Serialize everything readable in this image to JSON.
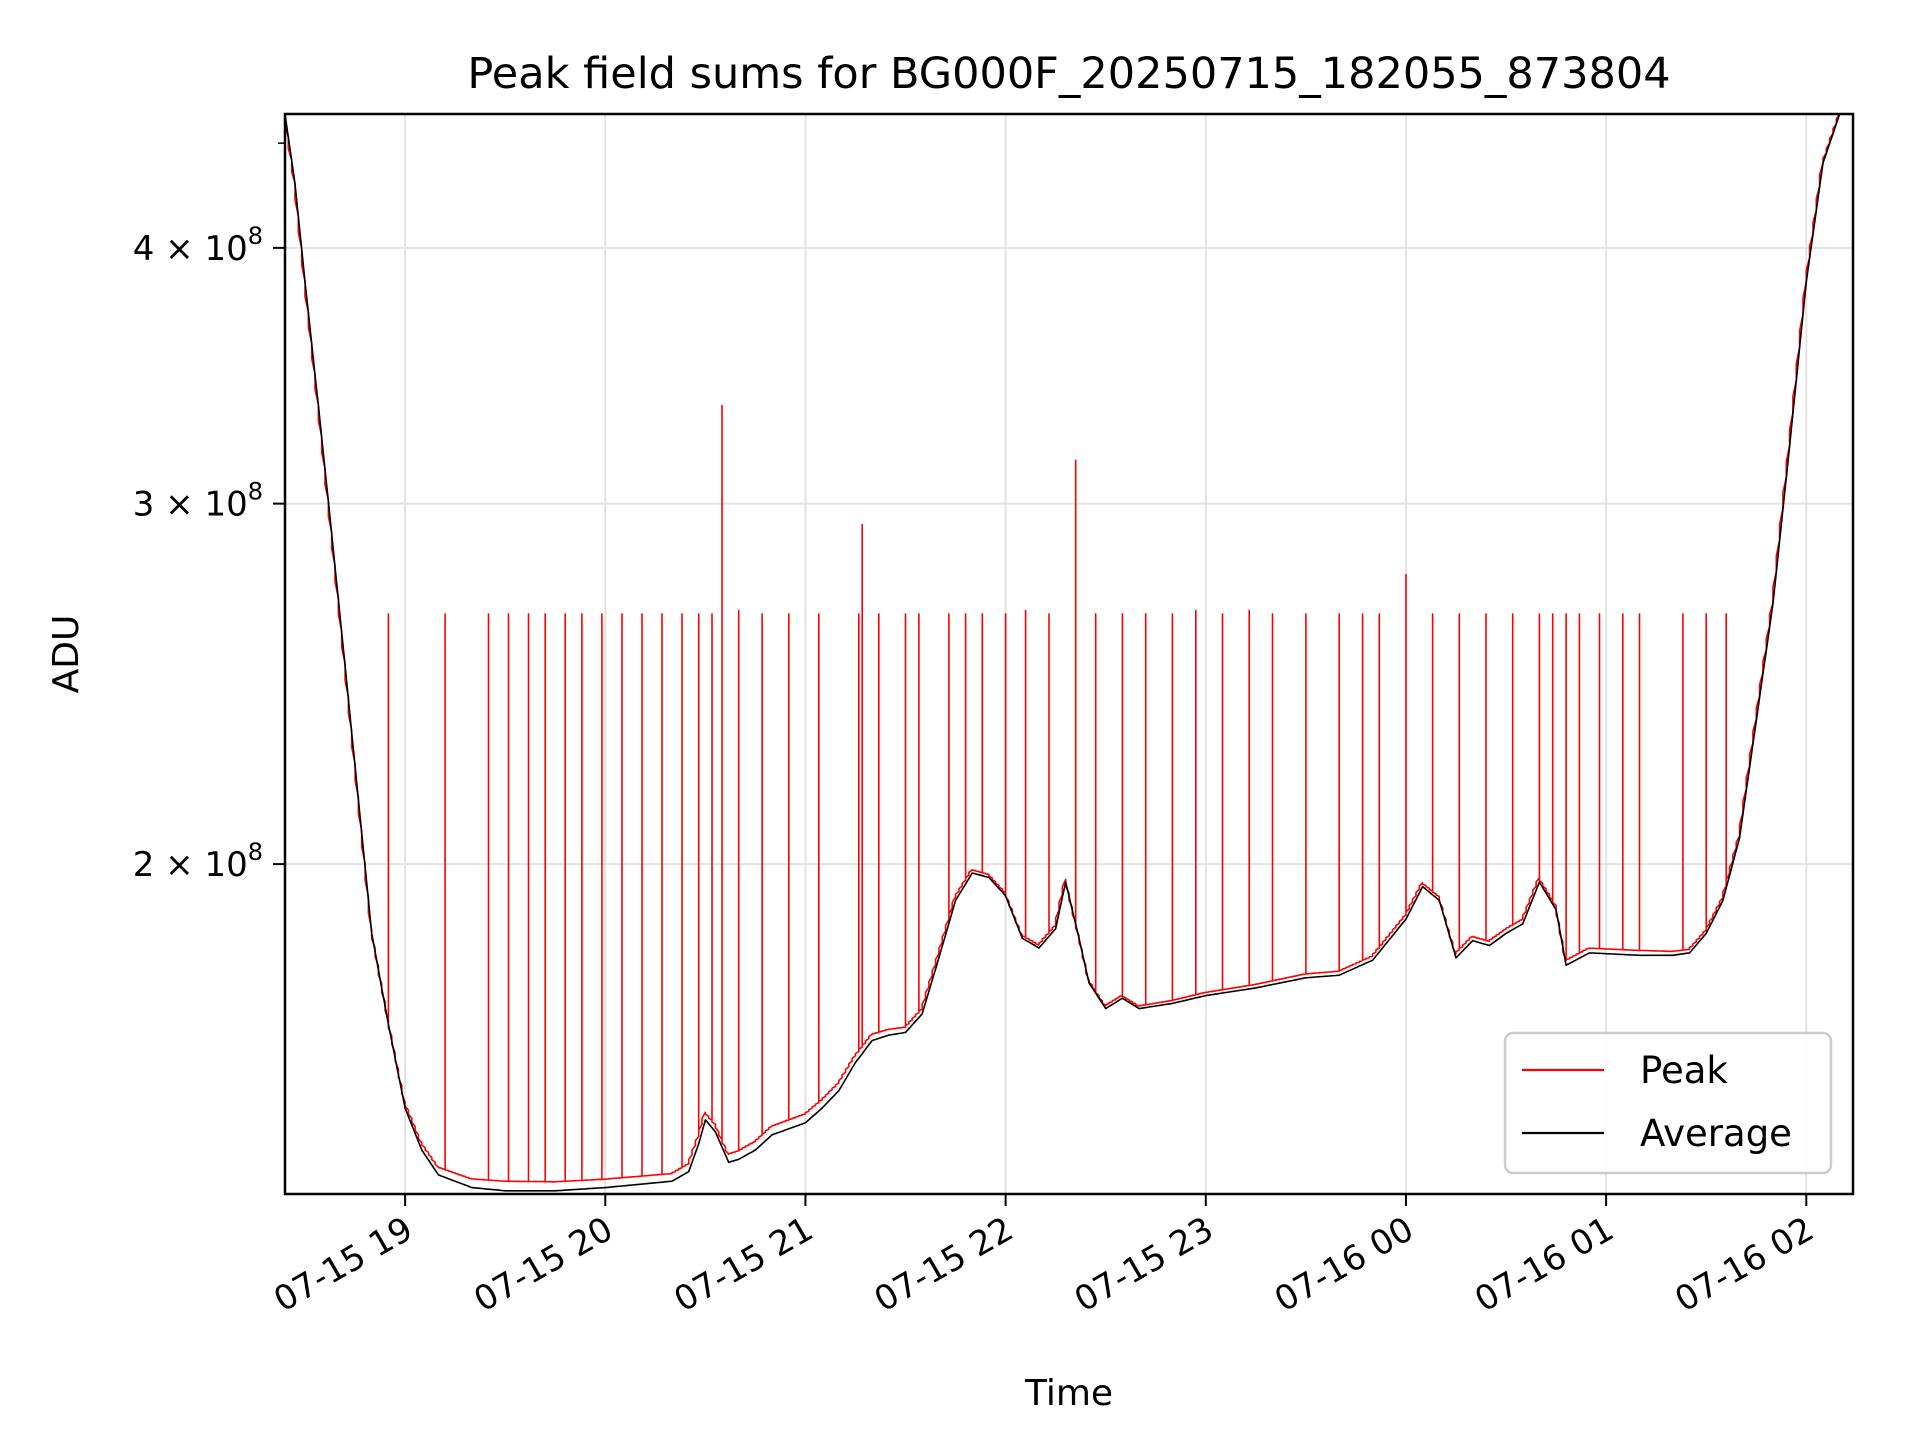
{
  "chart_data": {
    "type": "line",
    "title": "Peak field sums for BG000F_20250715_182055_873804",
    "xlabel": "Time",
    "ylabel": "ADU",
    "x_axis": {
      "type": "datetime",
      "range": [
        "2025-07-15 18:24",
        "2025-07-16 02:14"
      ],
      "ticks": [
        {
          "value": "2025-07-15 19:00",
          "label": "07-15 19"
        },
        {
          "value": "2025-07-15 20:00",
          "label": "07-15 20"
        },
        {
          "value": "2025-07-15 21:00",
          "label": "07-15 21"
        },
        {
          "value": "2025-07-15 22:00",
          "label": "07-15 22"
        },
        {
          "value": "2025-07-15 23:00",
          "label": "07-15 23"
        },
        {
          "value": "2025-07-16 00:00",
          "label": "07-16 00"
        },
        {
          "value": "2025-07-16 01:00",
          "label": "07-16 01"
        },
        {
          "value": "2025-07-16 02:00",
          "label": "07-16 02"
        }
      ]
    },
    "y_axis": {
      "scale": "log",
      "range": [
        138000000,
        465000000
      ],
      "ticks": [
        {
          "value": 200000000,
          "mantissa": "2",
          "base": "10",
          "exponent": "8"
        },
        {
          "value": 300000000,
          "mantissa": "3",
          "base": "10",
          "exponent": "8"
        },
        {
          "value": 400000000,
          "mantissa": "4",
          "base": "10",
          "exponent": "8"
        }
      ],
      "minor_ticks": [
        450000000
      ]
    },
    "grid": true,
    "legend": {
      "position": "lower-right"
    },
    "series": [
      {
        "name": "Peak",
        "color": "#ff0000",
        "baseline_offset": [
          [
            "2025-07-15 18:24",
            0
          ],
          [
            "2025-07-15 19:05",
            1200000
          ],
          [
            "2025-07-15 19:30",
            1500000
          ],
          [
            "2025-07-15 20:20",
            1200000
          ],
          [
            "2025-07-15 21:00",
            1500000
          ],
          [
            "2025-07-15 21:40",
            800000
          ],
          [
            "2025-07-15 22:40",
            500000
          ],
          [
            "2025-07-15 23:40",
            800000
          ],
          [
            "2025-07-16 01:10",
            1000000
          ],
          [
            "2025-07-16 01:40",
            400000
          ],
          [
            "2025-07-16 02:14",
            0
          ]
        ],
        "spikes": [
          [
            "2025-07-15 18:55",
            265000000
          ],
          [
            "2025-07-15 19:12",
            265000000
          ],
          [
            "2025-07-15 19:25",
            265000000
          ],
          [
            "2025-07-15 19:31",
            265000000
          ],
          [
            "2025-07-15 19:37",
            265000000
          ],
          [
            "2025-07-15 19:42",
            265000000
          ],
          [
            "2025-07-15 19:48",
            265000000
          ],
          [
            "2025-07-15 19:53",
            265000000
          ],
          [
            "2025-07-15 19:59",
            265000000
          ],
          [
            "2025-07-15 20:05",
            265000000
          ],
          [
            "2025-07-15 20:11",
            265000000
          ],
          [
            "2025-07-15 20:17",
            265000000
          ],
          [
            "2025-07-15 20:23",
            265000000
          ],
          [
            "2025-07-15 20:28",
            265000000
          ],
          [
            "2025-07-15 20:32",
            265000000
          ],
          [
            "2025-07-15 20:35",
            335000000
          ],
          [
            "2025-07-15 20:40",
            266000000
          ],
          [
            "2025-07-15 20:47",
            265000000
          ],
          [
            "2025-07-15 20:55",
            265000000
          ],
          [
            "2025-07-15 21:04",
            265000000
          ],
          [
            "2025-07-15 21:16",
            265000000
          ],
          [
            "2025-07-15 21:17",
            293000000
          ],
          [
            "2025-07-15 21:22",
            265000000
          ],
          [
            "2025-07-15 21:30",
            265000000
          ],
          [
            "2025-07-15 21:34",
            265000000
          ],
          [
            "2025-07-15 21:43",
            265000000
          ],
          [
            "2025-07-15 21:48",
            265000000
          ],
          [
            "2025-07-15 21:53",
            265000000
          ],
          [
            "2025-07-15 22:00",
            265000000
          ],
          [
            "2025-07-15 22:06",
            266000000
          ],
          [
            "2025-07-15 22:13",
            265000000
          ],
          [
            "2025-07-15 22:21",
            315000000
          ],
          [
            "2025-07-15 22:27",
            265000000
          ],
          [
            "2025-07-15 22:35",
            265000000
          ],
          [
            "2025-07-15 22:42",
            265000000
          ],
          [
            "2025-07-15 22:50",
            265000000
          ],
          [
            "2025-07-15 22:57",
            266000000
          ],
          [
            "2025-07-15 23:05",
            265000000
          ],
          [
            "2025-07-15 23:13",
            266000000
          ],
          [
            "2025-07-15 23:20",
            265000000
          ],
          [
            "2025-07-15 23:30",
            265000000
          ],
          [
            "2025-07-15 23:40",
            265000000
          ],
          [
            "2025-07-15 23:47",
            265000000
          ],
          [
            "2025-07-15 23:52",
            265000000
          ],
          [
            "2025-07-16 00:00",
            277000000
          ],
          [
            "2025-07-16 00:08",
            265000000
          ],
          [
            "2025-07-16 00:16",
            265000000
          ],
          [
            "2025-07-16 00:24",
            265000000
          ],
          [
            "2025-07-16 00:32",
            265000000
          ],
          [
            "2025-07-16 00:40",
            265000000
          ],
          [
            "2025-07-16 00:44",
            265000000
          ],
          [
            "2025-07-16 00:48",
            265000000
          ],
          [
            "2025-07-16 00:52",
            265000000
          ],
          [
            "2025-07-16 00:58",
            265000000
          ],
          [
            "2025-07-16 01:05",
            265000000
          ],
          [
            "2025-07-16 01:10",
            265000000
          ],
          [
            "2025-07-16 01:23",
            265000000
          ],
          [
            "2025-07-16 01:30",
            265000000
          ],
          [
            "2025-07-16 01:36",
            265000000
          ]
        ]
      },
      {
        "name": "Average",
        "color": "#000000",
        "points": [
          [
            "2025-07-15 18:24",
            465000000
          ],
          [
            "2025-07-15 18:27",
            430000000
          ],
          [
            "2025-07-15 18:30",
            385000000
          ],
          [
            "2025-07-15 18:34",
            335000000
          ],
          [
            "2025-07-15 18:38",
            290000000
          ],
          [
            "2025-07-15 18:42",
            250000000
          ],
          [
            "2025-07-15 18:46",
            215000000
          ],
          [
            "2025-07-15 18:50",
            185000000
          ],
          [
            "2025-07-15 18:55",
            167000000
          ],
          [
            "2025-07-15 19:00",
            152000000
          ],
          [
            "2025-07-15 19:05",
            145000000
          ],
          [
            "2025-07-15 19:10",
            141000000
          ],
          [
            "2025-07-15 19:20",
            139000000
          ],
          [
            "2025-07-15 19:30",
            138500000
          ],
          [
            "2025-07-15 19:45",
            138500000
          ],
          [
            "2025-07-15 20:00",
            139000000
          ],
          [
            "2025-07-15 20:10",
            139500000
          ],
          [
            "2025-07-15 20:20",
            140000000
          ],
          [
            "2025-07-15 20:25",
            141500000
          ],
          [
            "2025-07-15 20:28",
            146000000
          ],
          [
            "2025-07-15 20:30",
            150000000
          ],
          [
            "2025-07-15 20:33",
            148000000
          ],
          [
            "2025-07-15 20:37",
            143000000
          ],
          [
            "2025-07-15 20:40",
            143500000
          ],
          [
            "2025-07-15 20:45",
            145000000
          ],
          [
            "2025-07-15 20:50",
            147500000
          ],
          [
            "2025-07-15 21:00",
            149500000
          ],
          [
            "2025-07-15 21:05",
            152000000
          ],
          [
            "2025-07-15 21:10",
            155000000
          ],
          [
            "2025-07-15 21:15",
            160000000
          ],
          [
            "2025-07-15 21:20",
            164000000
          ],
          [
            "2025-07-15 21:25",
            165000000
          ],
          [
            "2025-07-15 21:30",
            165500000
          ],
          [
            "2025-07-15 21:35",
            169000000
          ],
          [
            "2025-07-15 21:40",
            180000000
          ],
          [
            "2025-07-15 21:45",
            192000000
          ],
          [
            "2025-07-15 21:50",
            198000000
          ],
          [
            "2025-07-15 21:55",
            197000000
          ],
          [
            "2025-07-15 22:00",
            193000000
          ],
          [
            "2025-07-15 22:05",
            184000000
          ],
          [
            "2025-07-15 22:10",
            182000000
          ],
          [
            "2025-07-15 22:15",
            186000000
          ],
          [
            "2025-07-15 22:18",
            196000000
          ],
          [
            "2025-07-15 22:22",
            184000000
          ],
          [
            "2025-07-15 22:25",
            175000000
          ],
          [
            "2025-07-15 22:30",
            170000000
          ],
          [
            "2025-07-15 22:35",
            172000000
          ],
          [
            "2025-07-15 22:40",
            170000000
          ],
          [
            "2025-07-15 22:50",
            171000000
          ],
          [
            "2025-07-15 23:00",
            172500000
          ],
          [
            "2025-07-15 23:15",
            174000000
          ],
          [
            "2025-07-15 23:30",
            176000000
          ],
          [
            "2025-07-15 23:40",
            176500000
          ],
          [
            "2025-07-15 23:50",
            179500000
          ],
          [
            "2025-07-16 00:00",
            188000000
          ],
          [
            "2025-07-16 00:05",
            195000000
          ],
          [
            "2025-07-16 00:10",
            192000000
          ],
          [
            "2025-07-16 00:15",
            180000000
          ],
          [
            "2025-07-16 00:20",
            183500000
          ],
          [
            "2025-07-16 00:25",
            182500000
          ],
          [
            "2025-07-16 00:30",
            185000000
          ],
          [
            "2025-07-16 00:35",
            187000000
          ],
          [
            "2025-07-16 00:40",
            196000000
          ],
          [
            "2025-07-16 00:45",
            190000000
          ],
          [
            "2025-07-16 00:48",
            178500000
          ],
          [
            "2025-07-16 00:55",
            181000000
          ],
          [
            "2025-07-16 01:10",
            180500000
          ],
          [
            "2025-07-16 01:20",
            180500000
          ],
          [
            "2025-07-16 01:25",
            181000000
          ],
          [
            "2025-07-16 01:30",
            185000000
          ],
          [
            "2025-07-16 01:35",
            192000000
          ],
          [
            "2025-07-16 01:40",
            206000000
          ],
          [
            "2025-07-16 01:45",
            235000000
          ],
          [
            "2025-07-16 01:50",
            268000000
          ],
          [
            "2025-07-16 01:55",
            320000000
          ],
          [
            "2025-07-16 02:00",
            385000000
          ],
          [
            "2025-07-16 02:05",
            440000000
          ],
          [
            "2025-07-16 02:10",
            465000000
          ]
        ]
      }
    ]
  }
}
